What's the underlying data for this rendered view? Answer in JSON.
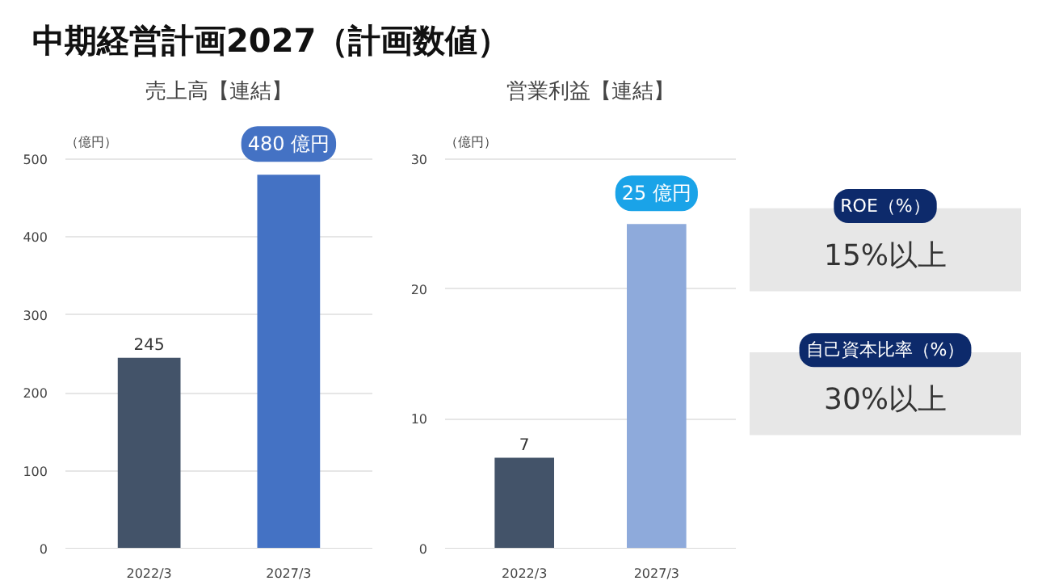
{
  "chart_data": [
    {
      "type": "bar",
      "title": "中期経営計画2027（計画数値）",
      "subtitle": "売上高【連結】",
      "ylabel": "（億円）",
      "categories": [
        "2022/3",
        "2027/3"
      ],
      "values": [
        245,
        480
      ],
      "colors": [
        "#435369",
        "#4472c4"
      ],
      "value_labels": [
        "245",
        "480 億円"
      ],
      "ylim": [
        0,
        500
      ],
      "yticks": [
        0,
        100,
        200,
        300,
        400,
        500
      ],
      "grid": "y"
    },
    {
      "type": "bar",
      "title": "営業利益【連結】",
      "ylabel": "（億円）",
      "categories": [
        "2022/3",
        "2027/3"
      ],
      "values": [
        7,
        25
      ],
      "colors": [
        "#435369",
        "#8eaadb"
      ],
      "value_labels": [
        "7",
        "25 億円"
      ],
      "ylim": [
        0,
        30
      ],
      "yticks": [
        0,
        10,
        20,
        30
      ],
      "grid": "y"
    },
    {
      "type": "other",
      "annotations": [
        "ROE（%）",
        "15%以上",
        "自己資本比率（%）",
        "30%以上"
      ]
    }
  ]
}
